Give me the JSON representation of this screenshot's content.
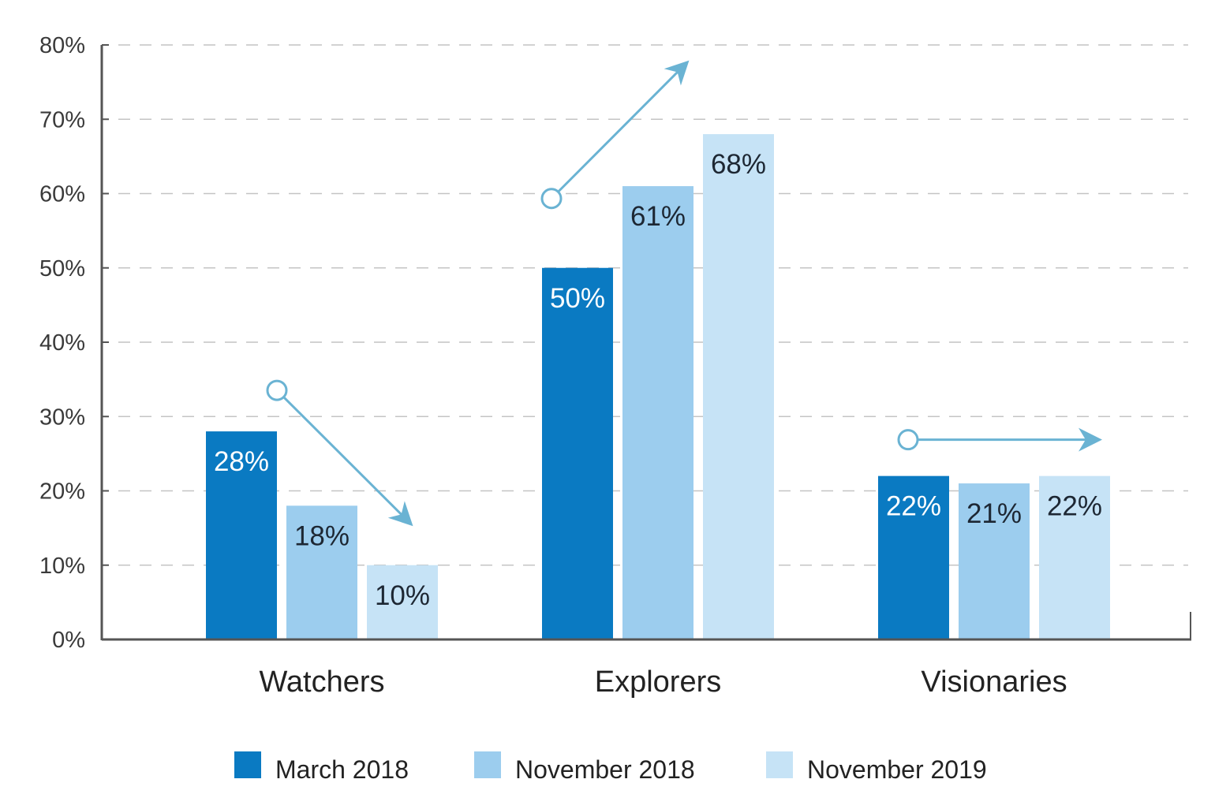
{
  "chart_data": {
    "type": "bar",
    "title": "",
    "xlabel": "",
    "ylabel": "",
    "categories": [
      "Watchers",
      "Explorers",
      "Visionaries"
    ],
    "series": [
      {
        "name": "March 2018",
        "values": [
          28,
          50,
          22
        ],
        "labels": [
          "28%",
          "50%",
          "22%"
        ],
        "color": "#0a7ac2",
        "label_color": "#ffffff"
      },
      {
        "name": "November 2018",
        "values": [
          18,
          61,
          21
        ],
        "labels": [
          "18%",
          "61%",
          "21%"
        ],
        "color": "#9ccdee",
        "label_color": "#1d2733"
      },
      {
        "name": "November 2019",
        "values": [
          10,
          68,
          22
        ],
        "labels": [
          "10%",
          "68%",
          "22%"
        ],
        "color": "#c6e3f6",
        "label_color": "#1d2733"
      }
    ],
    "ylim": [
      0,
      80
    ],
    "yticks": [
      0,
      10,
      20,
      30,
      40,
      50,
      60,
      70,
      80
    ],
    "ytick_labels": [
      "0%",
      "10%",
      "20%",
      "30%",
      "40%",
      "50%",
      "60%",
      "70%",
      "80%"
    ],
    "grid": true,
    "grid_style": "dashed",
    "legend_position": "bottom",
    "trend_arrows": [
      {
        "category": "Watchers",
        "direction": "down"
      },
      {
        "category": "Explorers",
        "direction": "up"
      },
      {
        "category": "Visionaries",
        "direction": "flat"
      }
    ],
    "arrow_color": "#6ab3d3",
    "axis_color": "#555555",
    "grid_color": "#c4c4c4"
  }
}
